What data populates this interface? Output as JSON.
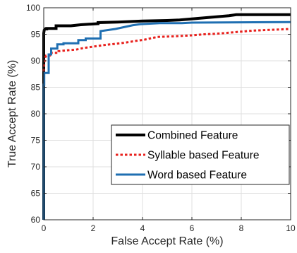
{
  "chart_data": {
    "type": "line",
    "title": "",
    "xlabel": "False Accept Rate (%)",
    "ylabel": "True Accept Rate (%)",
    "xlim": [
      0,
      10
    ],
    "ylim": [
      60,
      100
    ],
    "xticks": [
      0,
      2,
      4,
      6,
      8,
      10
    ],
    "yticks": [
      60,
      65,
      70,
      75,
      80,
      85,
      90,
      95,
      100
    ],
    "grid": true,
    "legend_position": "lower-right",
    "series": [
      {
        "name": "Combined Feature",
        "color": "#000000",
        "dash": "solid",
        "x": [
          0,
          0,
          0.02,
          0.05,
          0.12,
          0.12,
          0.5,
          0.5,
          1.1,
          1.5,
          2.2,
          2.2,
          3.0,
          3.5,
          4.0,
          5.0,
          5.5,
          6.0,
          6.5,
          7.0,
          7.5,
          7.8,
          10
        ],
        "y": [
          60,
          95.2,
          95.8,
          96.0,
          96.0,
          96.1,
          96.1,
          96.6,
          96.6,
          96.8,
          97.0,
          97.2,
          97.3,
          97.4,
          97.5,
          97.6,
          97.7,
          97.9,
          98.1,
          98.3,
          98.5,
          98.7,
          98.7
        ]
      },
      {
        "name": "Syllable based Feature",
        "color": "#e8211d",
        "dash": "dotted",
        "x": [
          0,
          0.02,
          0.05,
          0.1,
          0.25,
          0.25,
          0.6,
          0.6,
          1.0,
          1.3,
          1.6,
          1.9,
          2.2,
          2.5,
          2.9,
          3.1,
          3.4,
          3.8,
          4.1,
          4.4,
          4.6,
          5.2,
          5.6,
          6.0,
          6.5,
          7.0,
          7.5,
          8.0,
          8.5,
          9.0,
          9.5,
          10
        ],
        "y": [
          88.0,
          89.5,
          90.5,
          91.0,
          91.0,
          91.5,
          91.5,
          91.8,
          92.0,
          92.1,
          92.4,
          92.6,
          92.8,
          93.0,
          93.2,
          93.3,
          93.5,
          93.8,
          94.0,
          94.3,
          94.5,
          94.6,
          94.7,
          94.8,
          95.0,
          95.1,
          95.3,
          95.5,
          95.7,
          95.8,
          95.9,
          96.0
        ]
      },
      {
        "name": "Word based Feature",
        "color": "#1f6fb2",
        "dash": "solid",
        "x": [
          0,
          0,
          0.02,
          0.02,
          0.2,
          0.2,
          0.3,
          0.3,
          0.55,
          0.55,
          0.8,
          0.8,
          1.4,
          1.4,
          1.7,
          1.7,
          2.3,
          2.3,
          2.9,
          3.3,
          3.6,
          3.9,
          4.3,
          4.7,
          5.2,
          5.6,
          6.0,
          10
        ],
        "y": [
          60,
          85.5,
          85.5,
          87.7,
          87.7,
          91.2,
          91.2,
          92.3,
          92.3,
          93.1,
          93.1,
          93.3,
          93.3,
          93.9,
          93.9,
          94.2,
          94.2,
          95.6,
          96.0,
          96.4,
          96.7,
          96.9,
          97.0,
          97.1,
          97.1,
          97.1,
          97.2,
          97.3
        ]
      }
    ]
  }
}
